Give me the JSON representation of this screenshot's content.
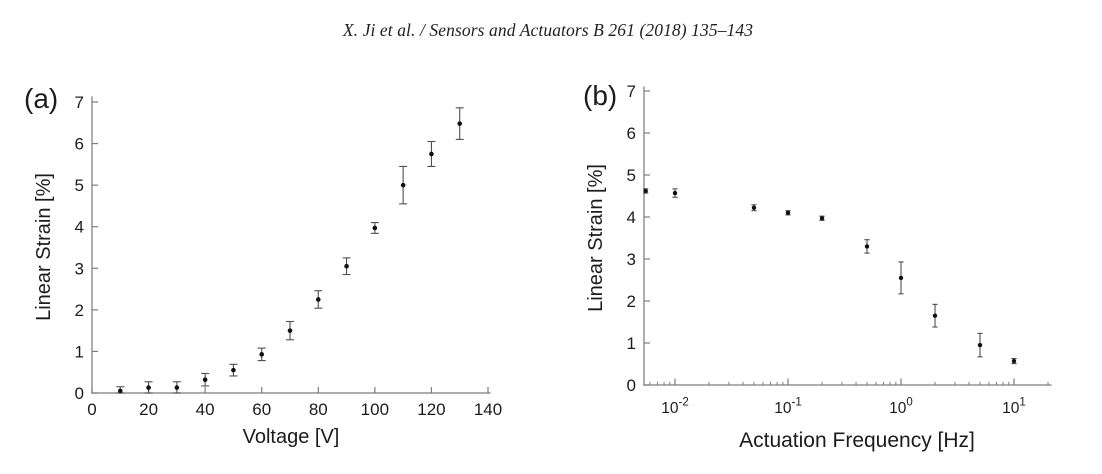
{
  "header": {
    "citation": "X. Ji et al. / Sensors and Actuators B 261 (2018) 135–143"
  },
  "colors": {
    "axis": "#7d7d7d",
    "tick_text": "#1c1c1c",
    "marker": "#111111",
    "error_bar": "#4f4f4f",
    "background": "#ffffff"
  },
  "chart_data": [
    {
      "type": "scatter",
      "panel_label": "(a)",
      "xlabel": "Voltage [V]",
      "ylabel": "Linear Strain [%]",
      "x_scale": "linear",
      "xlim": [
        0,
        140
      ],
      "ylim": [
        0,
        7
      ],
      "x_ticks": [
        0,
        20,
        40,
        60,
        80,
        100,
        120,
        140
      ],
      "y_ticks": [
        0,
        1,
        2,
        3,
        4,
        5,
        6,
        7
      ],
      "grid": false,
      "legend": "none",
      "marker": "point",
      "error_bars": true,
      "points": [
        {
          "x": 10,
          "y": 0.05,
          "err": 0.1
        },
        {
          "x": 20,
          "y": 0.13,
          "err": 0.14
        },
        {
          "x": 30,
          "y": 0.13,
          "err": 0.14
        },
        {
          "x": 40,
          "y": 0.32,
          "err": 0.15
        },
        {
          "x": 50,
          "y": 0.55,
          "err": 0.14
        },
        {
          "x": 60,
          "y": 0.93,
          "err": 0.15
        },
        {
          "x": 70,
          "y": 1.5,
          "err": 0.22
        },
        {
          "x": 80,
          "y": 2.25,
          "err": 0.21
        },
        {
          "x": 90,
          "y": 3.05,
          "err": 0.2
        },
        {
          "x": 100,
          "y": 3.97,
          "err": 0.13
        },
        {
          "x": 110,
          "y": 5.0,
          "err": 0.45
        },
        {
          "x": 120,
          "y": 5.75,
          "err": 0.3
        },
        {
          "x": 130,
          "y": 6.48,
          "err": 0.38
        }
      ]
    },
    {
      "type": "scatter",
      "panel_label": "(b)",
      "xlabel": "Actuation Frequency [Hz]",
      "ylabel": "Linear Strain [%]",
      "x_scale": "log",
      "xlim": [
        0.0055,
        21
      ],
      "ylim": [
        0,
        7
      ],
      "x_ticks": [
        0.01,
        0.1,
        1,
        10
      ],
      "x_tick_labels": [
        {
          "base": "10",
          "exp": "-2"
        },
        {
          "base": "10",
          "exp": "-1"
        },
        {
          "base": "10",
          "exp": "0"
        },
        {
          "base": "10",
          "exp": "1"
        }
      ],
      "y_ticks": [
        0,
        1,
        2,
        3,
        4,
        5,
        6,
        7
      ],
      "grid": false,
      "legend": "none",
      "marker": "point",
      "error_bars": true,
      "points": [
        {
          "x": 0.0055,
          "y": 4.62,
          "err": 0.05
        },
        {
          "x": 0.01,
          "y": 4.57,
          "err": 0.1
        },
        {
          "x": 0.05,
          "y": 4.22,
          "err": 0.07
        },
        {
          "x": 0.1,
          "y": 4.1,
          "err": 0.05
        },
        {
          "x": 0.2,
          "y": 3.97,
          "err": 0.05
        },
        {
          "x": 0.5,
          "y": 3.3,
          "err": 0.16
        },
        {
          "x": 1,
          "y": 2.55,
          "err": 0.38
        },
        {
          "x": 2,
          "y": 1.65,
          "err": 0.27
        },
        {
          "x": 5,
          "y": 0.95,
          "err": 0.28
        },
        {
          "x": 10,
          "y": 0.57,
          "err": 0.06
        }
      ]
    }
  ]
}
